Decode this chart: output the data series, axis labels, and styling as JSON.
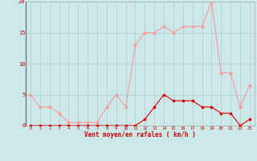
{
  "x": [
    0,
    1,
    2,
    3,
    4,
    5,
    6,
    7,
    8,
    9,
    10,
    11,
    12,
    13,
    14,
    15,
    16,
    17,
    18,
    19,
    20,
    21,
    22,
    23
  ],
  "y_moyen": [
    0,
    0,
    0,
    0,
    0,
    0,
    0,
    0,
    0,
    0,
    0,
    0,
    1,
    3,
    5,
    4,
    4,
    4,
    3,
    3,
    2,
    2,
    0,
    1
  ],
  "y_rafales": [
    5,
    3,
    3,
    2,
    0.5,
    0.5,
    0.5,
    0.5,
    3,
    5,
    3,
    13,
    15,
    15,
    16,
    15,
    16,
    16,
    16,
    20,
    8.5,
    8.5,
    3,
    6.5
  ],
  "xlabel": "Vent moyen/en rafales ( km/h )",
  "ylim": [
    0,
    20
  ],
  "xlim": [
    -0.5,
    23.5
  ],
  "yticks": [
    0,
    5,
    10,
    15,
    20
  ],
  "xticks": [
    0,
    1,
    2,
    3,
    4,
    5,
    6,
    7,
    8,
    9,
    10,
    11,
    12,
    13,
    14,
    15,
    16,
    17,
    18,
    19,
    20,
    21,
    22,
    23
  ],
  "bg_color": "#cce8e8",
  "grid_color": "#aacece",
  "line_color_moyen": "#dd0000",
  "line_color_rafales": "#ff9999",
  "tick_color": "#cc0000",
  "label_color": "#cc0000"
}
